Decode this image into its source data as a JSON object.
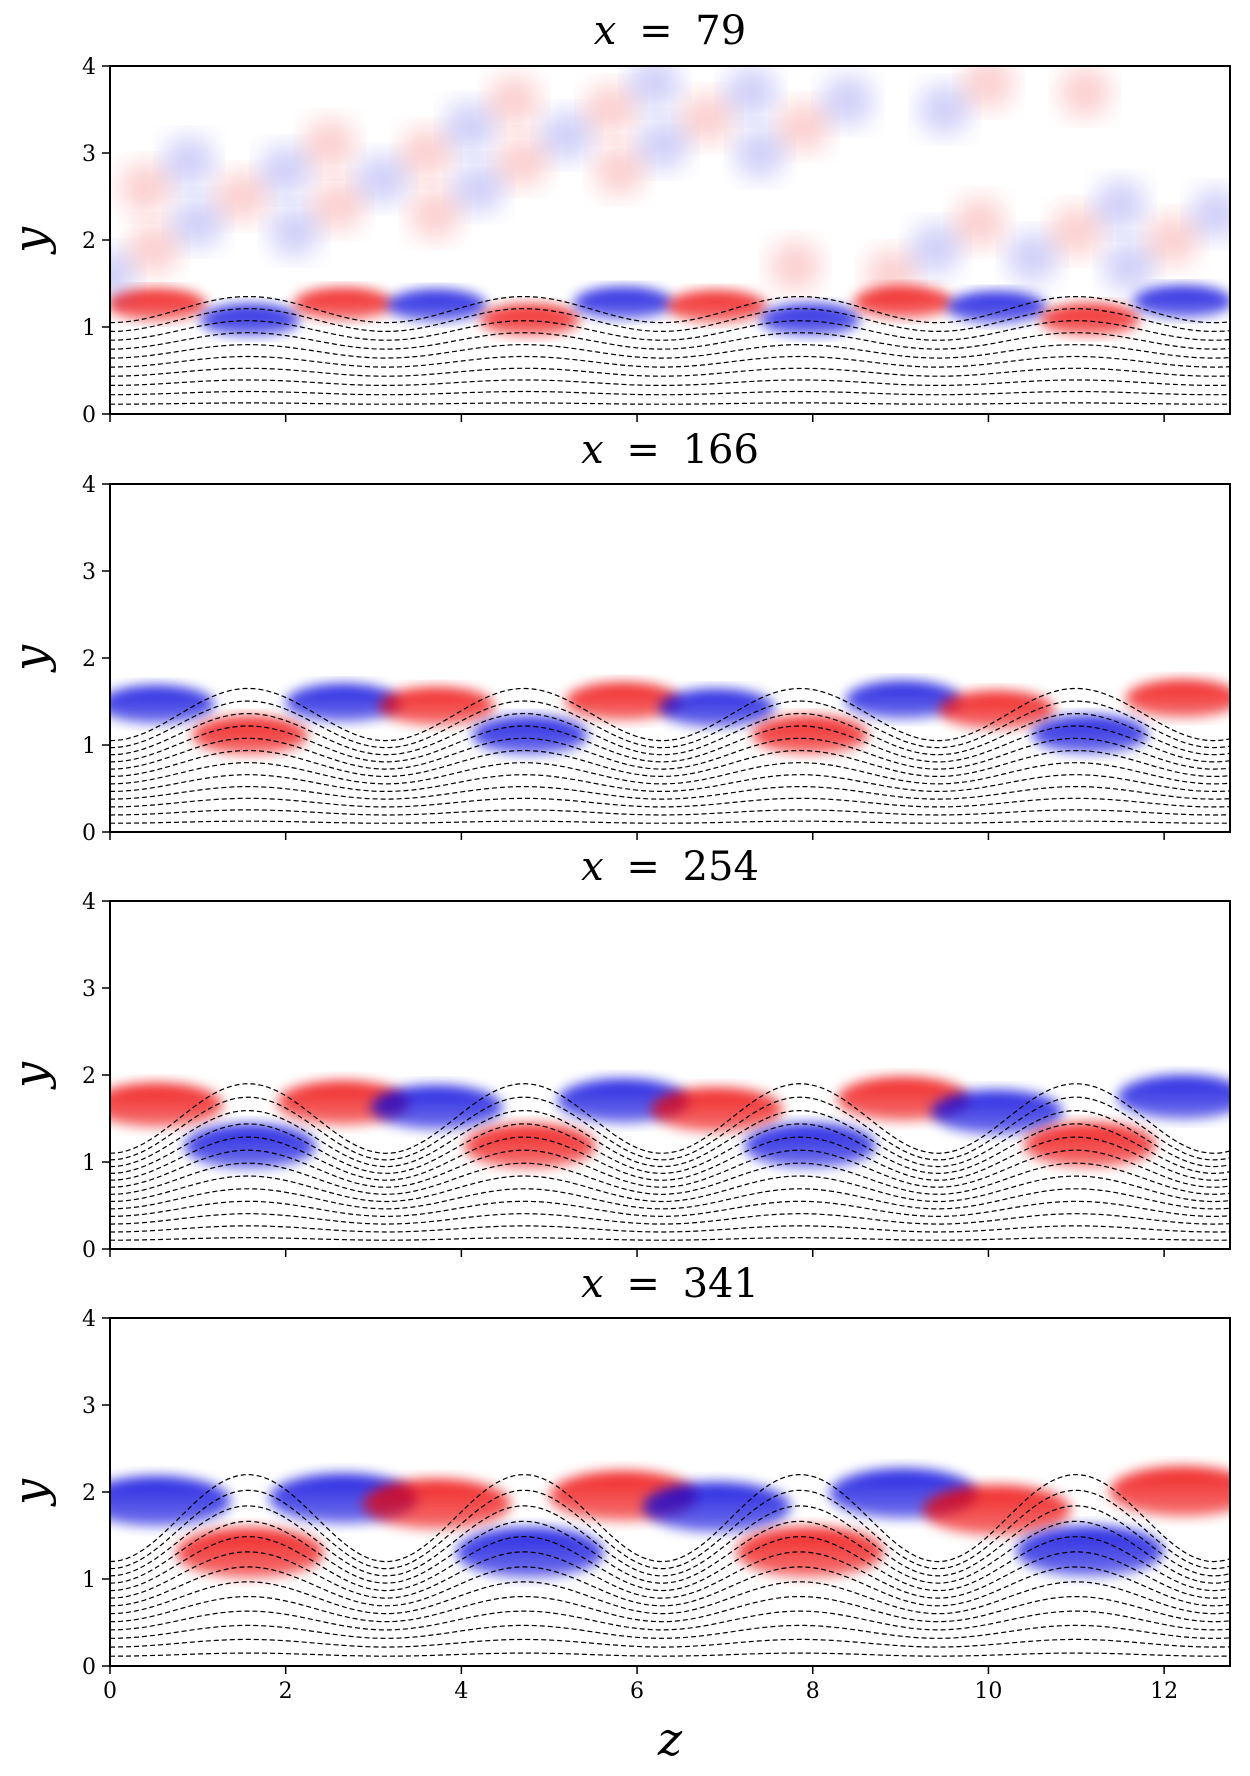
{
  "chart_data": {
    "type": "heatmap",
    "xlabel": "z",
    "ylabel": "y",
    "xlim": [
      0,
      12.75
    ],
    "ylim": [
      0,
      4
    ],
    "xticks": [
      0,
      2,
      4,
      6,
      8,
      10,
      12
    ],
    "yticks": [
      0,
      1,
      2,
      3,
      4
    ],
    "colormap": {
      "negative": "#0000dd",
      "zero": "#ffffff",
      "positive": "#ee0000"
    },
    "panels": [
      {
        "title_var": "x",
        "title_eq": "=",
        "title_val": "79",
        "wave_amplitude": 0.15,
        "top_streamline": 1.2,
        "bands": 10
      },
      {
        "title_var": "x",
        "title_eq": "=",
        "title_val": "166",
        "wave_amplitude": 0.3,
        "top_streamline": 1.35,
        "bands": 12
      },
      {
        "title_var": "x",
        "title_eq": "=",
        "title_val": "254",
        "wave_amplitude": 0.4,
        "top_streamline": 1.5,
        "bands": 13
      },
      {
        "title_var": "x",
        "title_eq": "=",
        "title_val": "341",
        "wave_amplitude": 0.5,
        "top_streamline": 1.7,
        "bands": 13
      }
    ],
    "panel_labels": [
      "x = 79",
      "x = 166",
      "x = 254",
      "x = 341"
    ]
  }
}
